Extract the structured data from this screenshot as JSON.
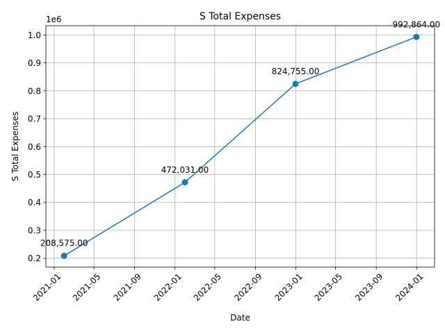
{
  "chart_data": {
    "type": "line",
    "title": "S Total Expenses",
    "xlabel": "Date",
    "ylabel": "S Total Expenses",
    "y_offset_label": "1e6",
    "x": [
      "2021-01-31",
      "2022-01-31",
      "2022-12-31",
      "2023-12-31"
    ],
    "series": [
      {
        "values": [
          208575,
          472031,
          824755,
          992864
        ],
        "data_labels": [
          "208,575.00",
          "472,031.00",
          "824,755.00",
          "992,864.00"
        ],
        "color": "#1f77b4",
        "marker": "circle"
      }
    ],
    "xticks": [
      "2021-01-01",
      "2021-05-01",
      "2021-09-01",
      "2022-01-01",
      "2022-05-01",
      "2022-09-01",
      "2023-01-01",
      "2023-05-01",
      "2023-09-01",
      "2024-01-01"
    ],
    "xtick_labels": [
      "2021-01",
      "2021-05",
      "2021-09",
      "2022-01",
      "2022-05",
      "2022-09",
      "2023-01",
      "2023-05",
      "2023-09",
      "2024-01"
    ],
    "yticks": [
      200000,
      300000,
      400000,
      500000,
      600000,
      700000,
      800000,
      900000,
      1000000
    ],
    "ytick_labels": [
      "0.2",
      "0.3",
      "0.4",
      "0.5",
      "0.6",
      "0.7",
      "0.8",
      "0.9",
      "1.0"
    ],
    "xlim": [
      "2020-12-07",
      "2024-02-24"
    ],
    "ylim": [
      168161,
      1033278
    ],
    "grid": true,
    "legend": "none"
  }
}
